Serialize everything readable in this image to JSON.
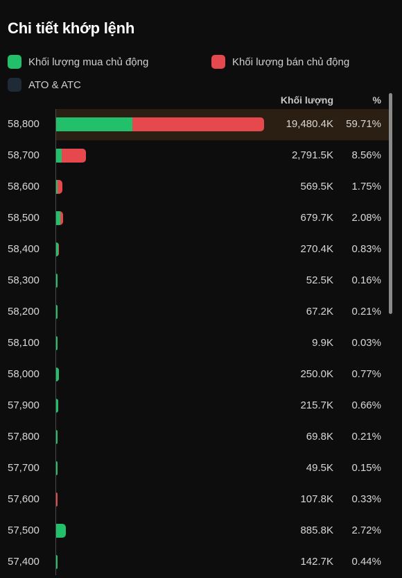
{
  "title": "Chi tiết khớp lệnh",
  "colors": {
    "buy": "#22c06a",
    "sell": "#e5484d",
    "ato_atc": "#1e2a36",
    "highlight": "#2a1f12",
    "background": "#0d0d0d"
  },
  "legend": {
    "buy": "Khối lượng mua chủ động",
    "sell": "Khối lượng bán chủ động",
    "ato_atc": "ATO & ATC"
  },
  "columns": {
    "volume": "Khối lượng",
    "percent": "%"
  },
  "rows": [
    {
      "price": "58,800",
      "volume": "19,480.4K",
      "percent": "59.71%",
      "buy_share": 0.366,
      "sell_share": 0.634,
      "highlight": true
    },
    {
      "price": "58,700",
      "volume": "2,791.5K",
      "percent": "8.56%",
      "buy_share": 0.18,
      "sell_share": 0.82
    },
    {
      "price": "58,600",
      "volume": "569.5K",
      "percent": "1.75%",
      "buy_share": 0.2,
      "sell_share": 0.8
    },
    {
      "price": "58,500",
      "volume": "679.7K",
      "percent": "2.08%",
      "buy_share": 0.6,
      "sell_share": 0.4
    },
    {
      "price": "58,400",
      "volume": "270.4K",
      "percent": "0.83%",
      "buy_share": 0.8,
      "sell_share": 0.2
    },
    {
      "price": "58,300",
      "volume": "52.5K",
      "percent": "0.16%",
      "buy_share": 1.0,
      "sell_share": 0.0
    },
    {
      "price": "58,200",
      "volume": "67.2K",
      "percent": "0.21%",
      "buy_share": 1.0,
      "sell_share": 0.0
    },
    {
      "price": "58,100",
      "volume": "9.9K",
      "percent": "0.03%",
      "buy_share": 1.0,
      "sell_share": 0.0
    },
    {
      "price": "58,000",
      "volume": "250.0K",
      "percent": "0.77%",
      "buy_share": 1.0,
      "sell_share": 0.0
    },
    {
      "price": "57,900",
      "volume": "215.7K",
      "percent": "0.66%",
      "buy_share": 1.0,
      "sell_share": 0.0
    },
    {
      "price": "57,800",
      "volume": "69.8K",
      "percent": "0.21%",
      "buy_share": 1.0,
      "sell_share": 0.0
    },
    {
      "price": "57,700",
      "volume": "49.5K",
      "percent": "0.15%",
      "buy_share": 1.0,
      "sell_share": 0.0
    },
    {
      "price": "57,600",
      "volume": "107.8K",
      "percent": "0.33%",
      "buy_share": 0.0,
      "sell_share": 1.0
    },
    {
      "price": "57,500",
      "volume": "885.8K",
      "percent": "2.72%",
      "buy_share": 1.0,
      "sell_share": 0.0
    },
    {
      "price": "57,400",
      "volume": "142.7K",
      "percent": "0.44%",
      "buy_share": 1.0,
      "sell_share": 0.0
    }
  ]
}
